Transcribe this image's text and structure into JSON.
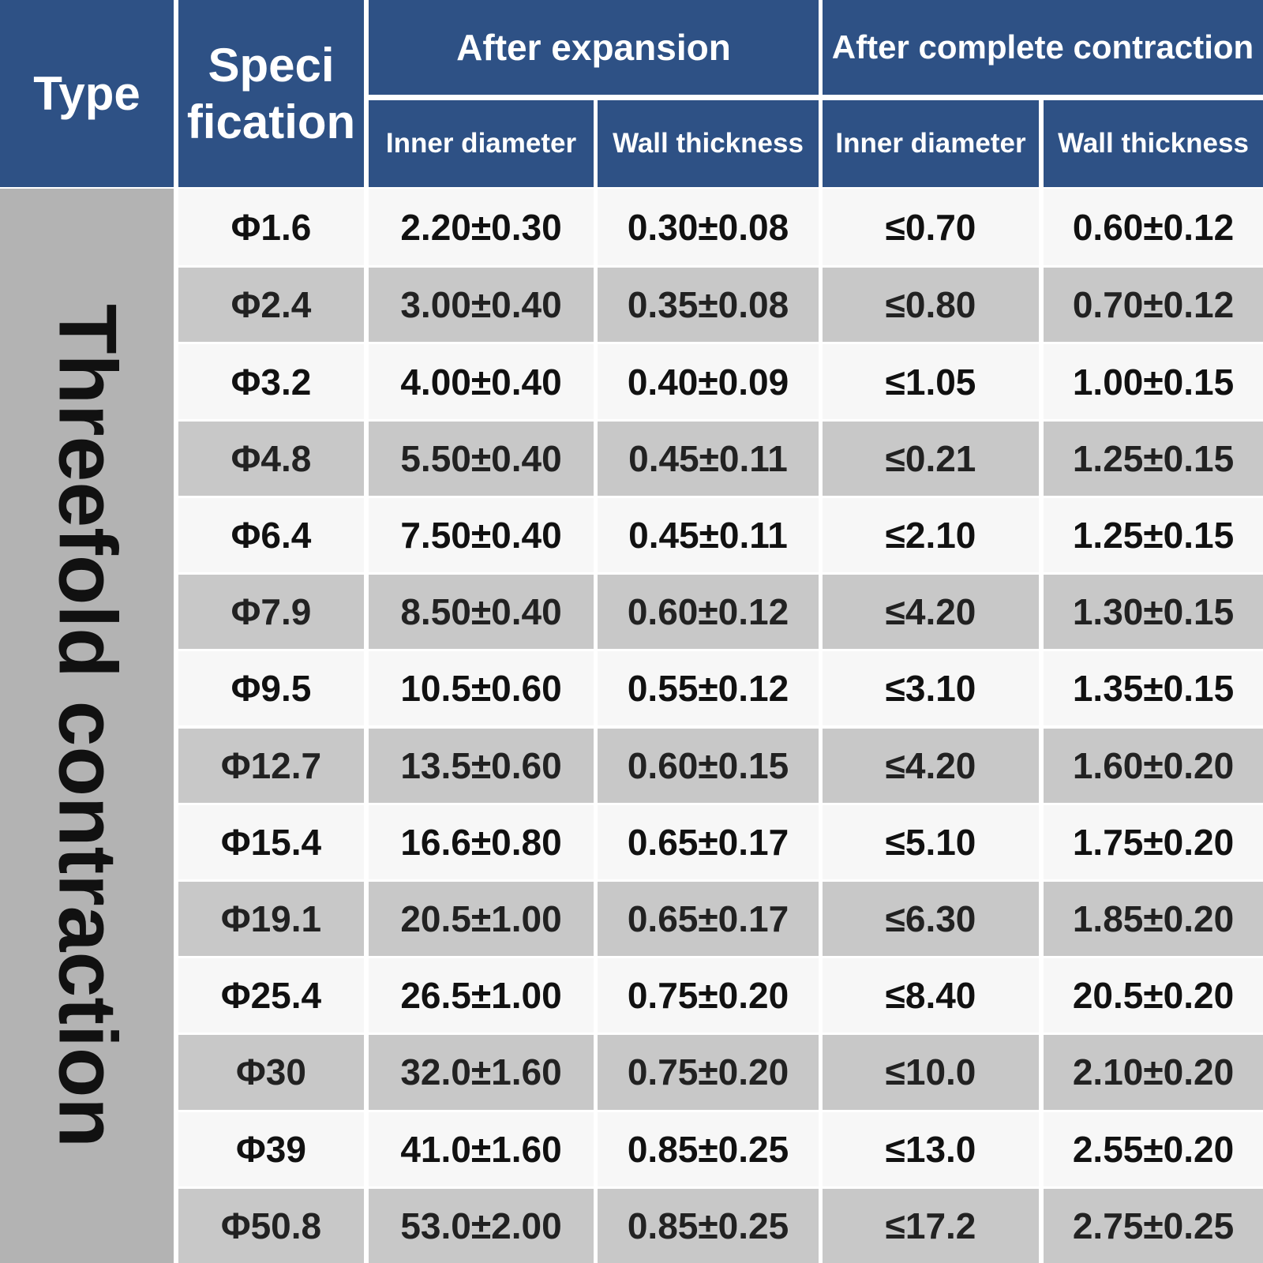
{
  "table": {
    "header": {
      "type": "Type",
      "specification": [
        "Speci",
        "fication"
      ],
      "groups": [
        "After expansion",
        "After complete contraction"
      ],
      "columns": [
        "Inner diameter",
        "Wall thickness",
        "Inner diameter",
        "Wall thickness"
      ]
    },
    "type_label": "Threefold contraction",
    "rows": [
      [
        "Φ1.6",
        "2.20±0.30",
        "0.30±0.08",
        "≤0.70",
        "0.60±0.12"
      ],
      [
        "Φ2.4",
        "3.00±0.40",
        "0.35±0.08",
        "≤0.80",
        "0.70±0.12"
      ],
      [
        "Φ3.2",
        "4.00±0.40",
        "0.40±0.09",
        "≤1.05",
        "1.00±0.15"
      ],
      [
        "Φ4.8",
        "5.50±0.40",
        "0.45±0.11",
        "≤0.21",
        "1.25±0.15"
      ],
      [
        "Φ6.4",
        "7.50±0.40",
        "0.45±0.11",
        "≤2.10",
        "1.25±0.15"
      ],
      [
        "Φ7.9",
        "8.50±0.40",
        "0.60±0.12",
        "≤4.20",
        "1.30±0.15"
      ],
      [
        "Φ9.5",
        "10.5±0.60",
        "0.55±0.12",
        "≤3.10",
        "1.35±0.15"
      ],
      [
        "Φ12.7",
        "13.5±0.60",
        "0.60±0.15",
        "≤4.20",
        "1.60±0.20"
      ],
      [
        "Φ15.4",
        "16.6±0.80",
        "0.65±0.17",
        "≤5.10",
        "1.75±0.20"
      ],
      [
        "Φ19.1",
        "20.5±1.00",
        "0.65±0.17",
        "≤6.30",
        "1.85±0.20"
      ],
      [
        "Φ25.4",
        "26.5±1.00",
        "0.75±0.20",
        "≤8.40",
        "20.5±0.20"
      ],
      [
        "Φ30",
        "32.0±1.60",
        "0.75±0.20",
        "≤10.0",
        "2.10±0.20"
      ],
      [
        "Φ39",
        "41.0±1.60",
        "0.85±0.25",
        "≤13.0",
        "2.55±0.20"
      ],
      [
        "Φ50.8",
        "53.0±2.00",
        "0.85±0.25",
        "≤17.2",
        "2.75±0.25"
      ]
    ]
  }
}
